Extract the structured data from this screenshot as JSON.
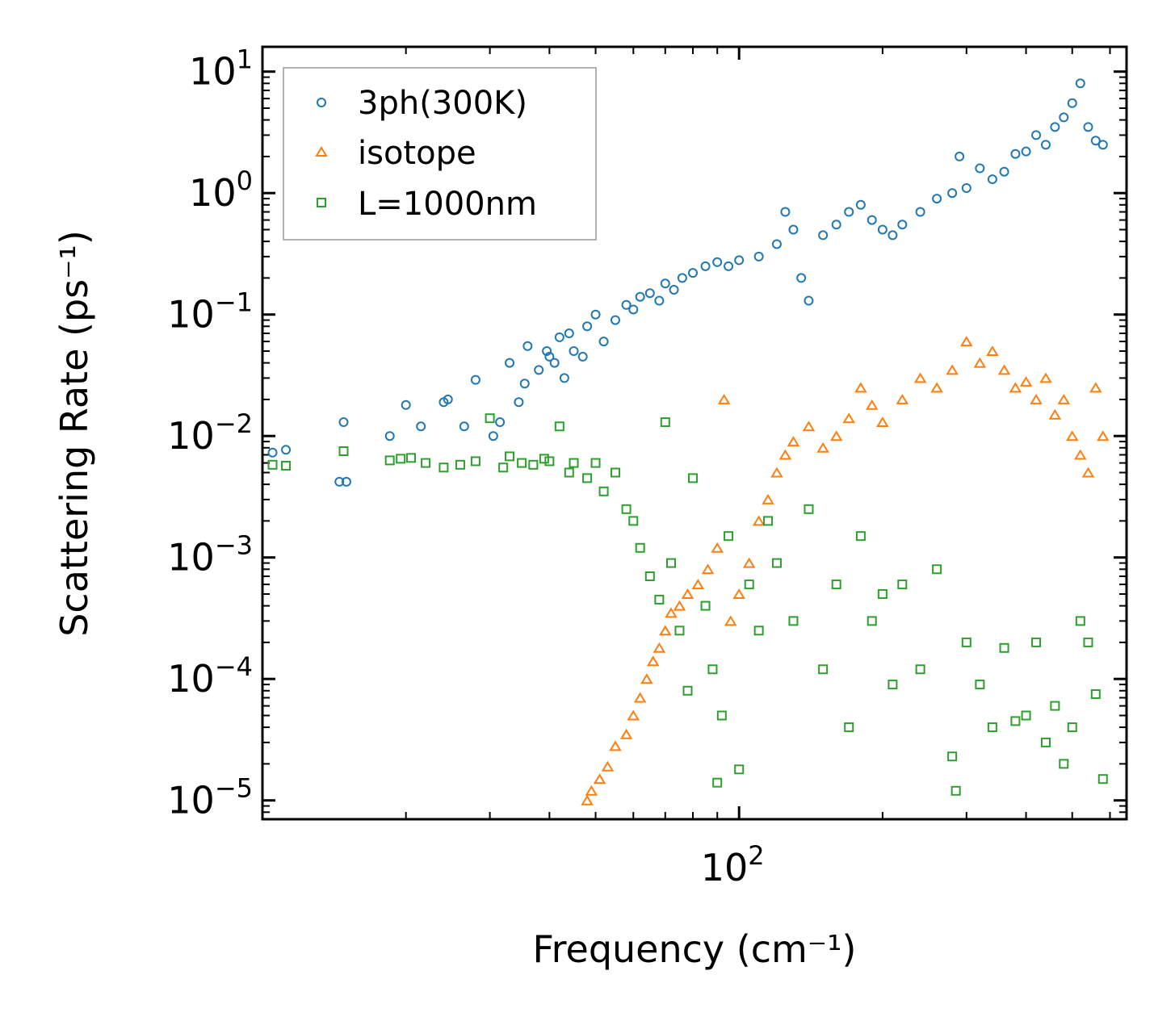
{
  "chart_data": {
    "type": "scatter",
    "title": "",
    "xlabel": "Frequency (cm⁻¹)",
    "ylabel": "Scattering Rate (ps⁻¹)",
    "xscale": "log",
    "yscale": "log",
    "xlim": [
      10,
      650
    ],
    "ylim": [
      7e-06,
      16
    ],
    "x_ticks": [
      {
        "base": "10",
        "exp": "2",
        "value": 100
      }
    ],
    "y_ticks": [
      {
        "base": "10",
        "exp": "1",
        "value": 10
      },
      {
        "base": "10",
        "exp": "0",
        "value": 1
      },
      {
        "base": "10",
        "exp": "−1",
        "value": 0.1
      },
      {
        "base": "10",
        "exp": "−2",
        "value": 0.01
      },
      {
        "base": "10",
        "exp": "−3",
        "value": 0.001
      },
      {
        "base": "10",
        "exp": "−4",
        "value": 0.0001
      },
      {
        "base": "10",
        "exp": "−5",
        "value": 1e-05
      }
    ],
    "legend_position": "top-left",
    "series": [
      {
        "name": "3ph(300K)",
        "color": "#1f77b4",
        "marker": "circle",
        "x": [
          10.5,
          11.2,
          14.5,
          14.8,
          15.0,
          18.5,
          20,
          21.5,
          24,
          24.5,
          26.5,
          28,
          30.5,
          31.5,
          33,
          34.5,
          35.5,
          36,
          38,
          39.5,
          40,
          41,
          42,
          43,
          44,
          45,
          47,
          48,
          50,
          52,
          55,
          58,
          60,
          62,
          65,
          68,
          70,
          73,
          76,
          80,
          85,
          90,
          95,
          100,
          110,
          120,
          125,
          130,
          135,
          140,
          150,
          160,
          170,
          180,
          190,
          200,
          210,
          220,
          240,
          260,
          280,
          290,
          300,
          320,
          340,
          360,
          380,
          400,
          420,
          440,
          460,
          480,
          500,
          520,
          540,
          560,
          580
        ],
        "y": [
          0.0073,
          0.0077,
          0.0042,
          0.013,
          0.0042,
          0.01,
          0.018,
          0.012,
          0.019,
          0.02,
          0.012,
          0.029,
          0.01,
          0.013,
          0.04,
          0.019,
          0.027,
          0.055,
          0.035,
          0.05,
          0.045,
          0.04,
          0.065,
          0.03,
          0.07,
          0.05,
          0.045,
          0.08,
          0.1,
          0.06,
          0.09,
          0.12,
          0.11,
          0.14,
          0.15,
          0.13,
          0.18,
          0.16,
          0.2,
          0.22,
          0.25,
          0.27,
          0.25,
          0.28,
          0.3,
          0.38,
          0.7,
          0.5,
          0.2,
          0.13,
          0.45,
          0.55,
          0.7,
          0.8,
          0.6,
          0.5,
          0.45,
          0.55,
          0.7,
          0.9,
          1.0,
          2.0,
          1.1,
          1.6,
          1.3,
          1.5,
          2.1,
          2.2,
          3.0,
          2.5,
          3.5,
          4.2,
          5.5,
          8.0,
          3.5,
          2.7,
          2.5
        ]
      },
      {
        "name": "isotope",
        "color": "#ff7f0e",
        "marker": "triangle",
        "x": [
          48,
          49,
          51,
          53,
          55,
          58,
          60,
          62,
          64,
          66,
          68,
          70,
          72,
          75,
          78,
          82,
          86,
          90,
          93,
          96,
          100,
          105,
          110,
          115,
          120,
          125,
          130,
          140,
          150,
          160,
          170,
          180,
          190,
          200,
          220,
          240,
          260,
          280,
          300,
          320,
          340,
          360,
          380,
          400,
          420,
          440,
          460,
          480,
          500,
          520,
          540,
          560,
          580
        ],
        "y": [
          1e-05,
          1.2e-05,
          1.5e-05,
          1.9e-05,
          2.8e-05,
          3.5e-05,
          5e-05,
          7e-05,
          0.0001,
          0.00014,
          0.00018,
          0.00025,
          0.00035,
          0.0004,
          0.0005,
          0.0006,
          0.0008,
          0.0012,
          0.02,
          0.0003,
          0.0005,
          0.0009,
          0.002,
          0.003,
          0.005,
          0.007,
          0.009,
          0.012,
          0.008,
          0.01,
          0.014,
          0.025,
          0.018,
          0.013,
          0.02,
          0.03,
          0.025,
          0.035,
          0.06,
          0.04,
          0.05,
          0.035,
          0.025,
          0.028,
          0.02,
          0.03,
          0.015,
          0.02,
          0.01,
          0.007,
          0.005,
          0.025,
          0.01
        ]
      },
      {
        "name": "L=1000nm",
        "color": "#2ca02c",
        "marker": "square",
        "x": [
          10.5,
          11.2,
          14.8,
          18.5,
          19.5,
          20.5,
          22,
          24,
          26,
          28,
          30,
          32,
          33,
          35,
          37,
          39,
          40,
          42,
          44,
          45,
          48,
          50,
          52,
          55,
          58,
          60,
          62,
          65,
          68,
          70,
          72,
          75,
          78,
          80,
          85,
          88,
          90,
          92,
          95,
          100,
          105,
          110,
          115,
          120,
          130,
          140,
          150,
          160,
          170,
          180,
          190,
          200,
          210,
          220,
          240,
          260,
          280,
          285,
          300,
          320,
          340,
          360,
          380,
          400,
          420,
          440,
          460,
          480,
          500,
          520,
          540,
          560,
          580
        ],
        "y": [
          0.0058,
          0.0057,
          0.0075,
          0.0063,
          0.0065,
          0.0066,
          0.006,
          0.0055,
          0.0058,
          0.0062,
          0.014,
          0.0055,
          0.0068,
          0.006,
          0.0058,
          0.0065,
          0.0062,
          0.012,
          0.005,
          0.006,
          0.0045,
          0.006,
          0.0035,
          0.005,
          0.0025,
          0.002,
          0.0012,
          0.0007,
          0.00045,
          0.013,
          0.0009,
          0.00025,
          8e-05,
          0.0045,
          0.0004,
          0.00012,
          1.4e-05,
          5e-05,
          0.0015,
          1.8e-05,
          0.0006,
          0.00025,
          0.002,
          0.0009,
          0.0003,
          0.0025,
          0.00012,
          0.0006,
          4e-05,
          0.0015,
          0.0003,
          0.0005,
          9e-05,
          0.0006,
          0.00012,
          0.0008,
          2.3e-05,
          1.2e-05,
          0.0002,
          9e-05,
          4e-05,
          0.00018,
          4.5e-05,
          5e-05,
          0.0002,
          3e-05,
          6e-05,
          2e-05,
          4e-05,
          0.0003,
          0.0002,
          7.5e-05,
          1.5e-05
        ]
      }
    ]
  }
}
